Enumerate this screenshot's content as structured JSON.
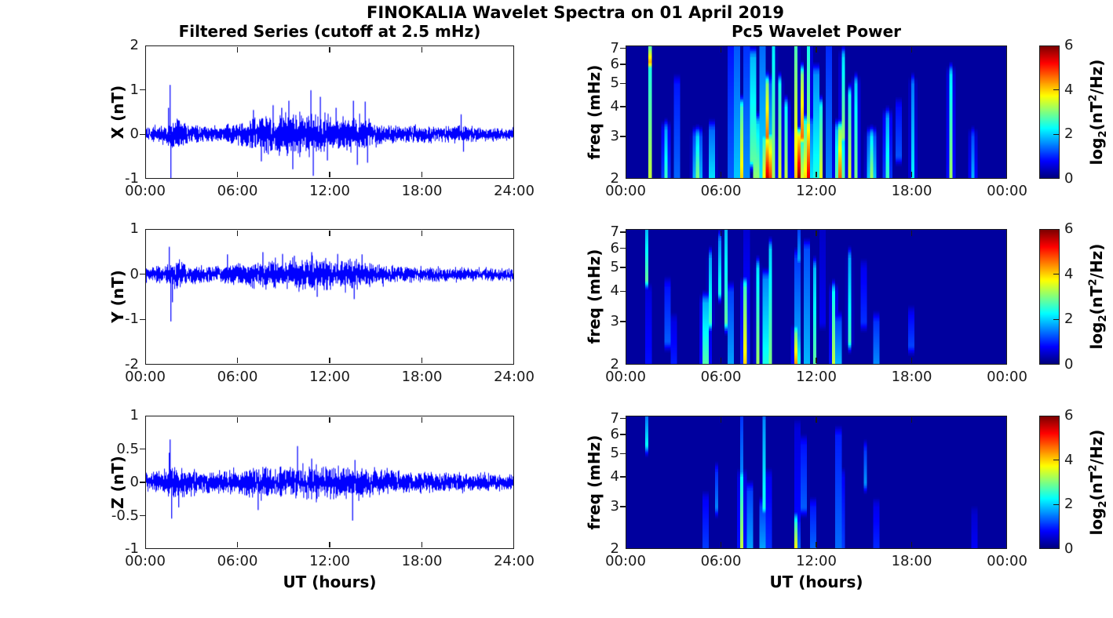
{
  "figure": {
    "title": "FINOKALIA Wavelet Spectra on 01 April 2019",
    "left_title": "Filtered Series (cutoff at 2.5 mHz)",
    "right_title": "Pc5 Wavelet Power",
    "xlabel": "UT (hours)",
    "axis_color": "#1a1a1a",
    "background": "#ffffff",
    "line_color": "#0000ff",
    "heatmap_background": "#00009e",
    "colorbar_label": {
      "pre": "log",
      "sub": "2",
      "mid": "(nT",
      "sup": "2",
      "post": "/Hz)"
    }
  },
  "chart_data": [
    {
      "id": "ts-x",
      "type": "line",
      "component": "X",
      "ylabel": "X (nT)",
      "line_color": "#0000ff",
      "xlim_hours": [
        0,
        24
      ],
      "ylim": [
        -1,
        2
      ],
      "yticks": [
        -1,
        0,
        1,
        2
      ],
      "yticklabels": [
        "-1",
        "0",
        "1",
        "2"
      ],
      "xticks": [
        0,
        6,
        12,
        18,
        24
      ],
      "xticklabels": [
        "00:00",
        "06:00",
        "12:00",
        "18:00",
        "24:00"
      ],
      "noise_envelope_hourly_nT": [
        0.1,
        0.14,
        0.22,
        0.13,
        0.12,
        0.13,
        0.16,
        0.26,
        0.3,
        0.32,
        0.3,
        0.32,
        0.27,
        0.26,
        0.26,
        0.17,
        0.14,
        0.13,
        0.12,
        0.11,
        0.13,
        0.12,
        0.1,
        0.09,
        0.09
      ],
      "spikes_t_v": [
        [
          1.45,
          0.6
        ],
        [
          1.55,
          1.12
        ],
        [
          1.6,
          -1.0
        ],
        [
          7.0,
          0.55
        ],
        [
          7.5,
          -0.62
        ],
        [
          8.3,
          0.66
        ],
        [
          8.85,
          0.6
        ],
        [
          9.3,
          0.76
        ],
        [
          9.6,
          -0.8
        ],
        [
          10.75,
          1.0
        ],
        [
          10.9,
          -0.95
        ],
        [
          11.4,
          0.85
        ],
        [
          11.85,
          -0.6
        ],
        [
          12.4,
          0.6
        ],
        [
          13.55,
          0.76
        ],
        [
          13.8,
          -0.7
        ],
        [
          14.3,
          0.74
        ],
        [
          14.45,
          -0.65
        ],
        [
          20.6,
          0.45
        ],
        [
          20.75,
          -0.4
        ]
      ]
    },
    {
      "id": "ts-y",
      "type": "line",
      "component": "Y",
      "ylabel": "Y (nT)",
      "line_color": "#0000ff",
      "xlim_hours": [
        0,
        24
      ],
      "ylim": [
        -2,
        1
      ],
      "yticks": [
        -2,
        -1,
        0,
        1
      ],
      "yticklabels": [
        "-2",
        "-1",
        "0",
        "1"
      ],
      "xticks": [
        0,
        6,
        12,
        18,
        24
      ],
      "xticklabels": [
        "00:00",
        "06:00",
        "12:00",
        "18:00",
        "24:00"
      ],
      "noise_envelope_hourly_nT": [
        0.1,
        0.12,
        0.2,
        0.13,
        0.12,
        0.14,
        0.16,
        0.19,
        0.21,
        0.21,
        0.22,
        0.25,
        0.22,
        0.21,
        0.22,
        0.16,
        0.13,
        0.12,
        0.12,
        0.11,
        0.1,
        0.1,
        0.1,
        0.09,
        0.09
      ],
      "spikes_t_v": [
        [
          1.5,
          0.62
        ],
        [
          1.6,
          -1.05
        ],
        [
          1.7,
          -0.62
        ],
        [
          5.3,
          0.45
        ],
        [
          7.6,
          0.5
        ],
        [
          8.9,
          0.46
        ],
        [
          9.7,
          0.42
        ],
        [
          10.8,
          0.5
        ],
        [
          11.2,
          -0.5
        ],
        [
          12.5,
          0.46
        ],
        [
          13.6,
          -0.55
        ],
        [
          14.1,
          0.45
        ]
      ]
    },
    {
      "id": "ts-z",
      "type": "line",
      "component": "Z",
      "ylabel": "Z (nT)",
      "xlabel": "UT (hours)",
      "line_color": "#0000ff",
      "xlim_hours": [
        0,
        24
      ],
      "ylim": [
        -1,
        1
      ],
      "yticks": [
        -1,
        -0.5,
        0,
        0.5,
        1
      ],
      "yticklabels": [
        "-1",
        "-0.5",
        "0",
        "0.5",
        "1"
      ],
      "xticks": [
        0,
        6,
        12,
        18,
        24
      ],
      "xticklabels": [
        "00:00",
        "06:00",
        "12:00",
        "18:00",
        "24:00"
      ],
      "noise_envelope_hourly_nT": [
        0.09,
        0.11,
        0.16,
        0.12,
        0.1,
        0.11,
        0.13,
        0.15,
        0.16,
        0.15,
        0.16,
        0.18,
        0.16,
        0.15,
        0.16,
        0.13,
        0.12,
        0.11,
        0.1,
        0.1,
        0.1,
        0.09,
        0.09,
        0.08,
        0.08
      ],
      "spikes_t_v": [
        [
          1.5,
          0.45
        ],
        [
          1.55,
          0.65
        ],
        [
          1.65,
          -0.55
        ],
        [
          2.1,
          -0.38
        ],
        [
          7.3,
          -0.42
        ],
        [
          9.9,
          0.55
        ],
        [
          10.8,
          0.36
        ],
        [
          13.5,
          -0.58
        ],
        [
          13.65,
          0.34
        ]
      ]
    },
    {
      "id": "sp-x",
      "type": "heatmap",
      "component": "X",
      "ylabel": "freq (mHz)",
      "yscale": "log",
      "xlim_hours": [
        0,
        24
      ],
      "flim_mHz": [
        2,
        7.2
      ],
      "yticks": [
        2,
        3,
        4,
        5,
        6,
        7
      ],
      "yticklabels": [
        "2",
        "3",
        "4",
        "5",
        "6",
        "7"
      ],
      "xticks": [
        0,
        6,
        12,
        18,
        24
      ],
      "xticklabels": [
        "00:00",
        "06:00",
        "12:00",
        "18:00",
        "00:00"
      ],
      "colormap": "jet",
      "clim": [
        0,
        6
      ],
      "colorbar_ticks": [
        0,
        2,
        4,
        6
      ],
      "events_t_w_f1_f2_power": [
        [
          1.5,
          0.06,
          2,
          7.2,
          3.4
        ],
        [
          1.5,
          0.08,
          6.2,
          7.2,
          4.2
        ],
        [
          2.5,
          0.15,
          2,
          3.2,
          2.6
        ],
        [
          3.2,
          0.1,
          2,
          5,
          2.2
        ],
        [
          4.5,
          0.2,
          2,
          3,
          3.0
        ],
        [
          5.4,
          0.15,
          2,
          3.2,
          2.6
        ],
        [
          6.6,
          0.07,
          2,
          7.2,
          3.6
        ],
        [
          7.0,
          0.08,
          2,
          7.2,
          4.2
        ],
        [
          7.3,
          0.1,
          2,
          4,
          4.0
        ],
        [
          7.6,
          0.07,
          2,
          7.2,
          4.4
        ],
        [
          8.0,
          0.1,
          2.4,
          6.5,
          4.6
        ],
        [
          8.2,
          0.12,
          2,
          3.4,
          4.4
        ],
        [
          8.6,
          0.08,
          2,
          7.2,
          4.6
        ],
        [
          8.95,
          0.28,
          2,
          2.9,
          5.7
        ],
        [
          8.9,
          0.15,
          3,
          5,
          4.6
        ],
        [
          9.35,
          0.07,
          2,
          7.2,
          4.2
        ],
        [
          9.7,
          0.1,
          2,
          5,
          3.6
        ],
        [
          10.1,
          0.12,
          2,
          4,
          3.4
        ],
        [
          10.75,
          0.07,
          2,
          7.2,
          5.3
        ],
        [
          10.9,
          0.2,
          2,
          3,
          5.9
        ],
        [
          11.1,
          0.1,
          3,
          5.5,
          4.6
        ],
        [
          11.45,
          0.18,
          2,
          3.4,
          5.6
        ],
        [
          11.55,
          0.08,
          2,
          7.2,
          4.4
        ],
        [
          12.0,
          0.1,
          2,
          5.5,
          4.0
        ],
        [
          12.3,
          0.08,
          2,
          4,
          3.6
        ],
        [
          12.8,
          0.07,
          2,
          7.2,
          4.2
        ],
        [
          13.5,
          0.2,
          2,
          3.2,
          4.7
        ],
        [
          13.65,
          0.08,
          3,
          6.5,
          3.8
        ],
        [
          14.1,
          0.1,
          2,
          4.5,
          3.6
        ],
        [
          14.5,
          0.12,
          2,
          5,
          3.0
        ],
        [
          15.5,
          0.2,
          2,
          3,
          3.2
        ],
        [
          16.5,
          0.15,
          2,
          3.6,
          2.6
        ],
        [
          17.2,
          0.1,
          2.5,
          4,
          2.0
        ],
        [
          18.1,
          0.12,
          2,
          5,
          2.2
        ],
        [
          20.5,
          0.12,
          2,
          5.5,
          3.2
        ],
        [
          21.9,
          0.15,
          2,
          3,
          1.8
        ]
      ]
    },
    {
      "id": "sp-y",
      "type": "heatmap",
      "component": "Y",
      "ylabel": "freq (mHz)",
      "yscale": "log",
      "xlim_hours": [
        0,
        24
      ],
      "flim_mHz": [
        2,
        7.2
      ],
      "yticks": [
        2,
        3,
        4,
        5,
        6,
        7
      ],
      "yticklabels": [
        "2",
        "3",
        "4",
        "5",
        "6",
        "7"
      ],
      "xticks": [
        0,
        6,
        12,
        18,
        24
      ],
      "xticklabels": [
        "00:00",
        "06:00",
        "12:00",
        "18:00",
        "00:00"
      ],
      "colormap": "jet",
      "clim": [
        0,
        6
      ],
      "colorbar_ticks": [
        0,
        2,
        4,
        6
      ],
      "events_t_w_f1_f2_power": [
        [
          1.3,
          0.06,
          4.5,
          7.2,
          2.8
        ],
        [
          1.4,
          0.08,
          2,
          4,
          1.8
        ],
        [
          2.6,
          0.12,
          2.5,
          4.2,
          1.8
        ],
        [
          3.0,
          0.1,
          2,
          3,
          1.5
        ],
        [
          5.0,
          0.18,
          2,
          3.6,
          3.2
        ],
        [
          5.3,
          0.1,
          3,
          5.5,
          2.6
        ],
        [
          5.9,
          0.1,
          4,
          6.5,
          2.4
        ],
        [
          6.3,
          0.08,
          3,
          7.2,
          2.8
        ],
        [
          6.6,
          0.12,
          2,
          4,
          2.4
        ],
        [
          7.5,
          0.12,
          2,
          4.2,
          4.0
        ],
        [
          7.6,
          0.06,
          4,
          7.2,
          3.0
        ],
        [
          8.3,
          0.1,
          2,
          5,
          3.2
        ],
        [
          8.8,
          0.12,
          2,
          4.5,
          3.4
        ],
        [
          9.1,
          0.08,
          2,
          6,
          3.0
        ],
        [
          10.75,
          0.13,
          2,
          2.7,
          4.7
        ],
        [
          10.8,
          0.08,
          2.7,
          5.5,
          3.6
        ],
        [
          10.85,
          0.05,
          5.5,
          7.2,
          2.8
        ],
        [
          11.4,
          0.1,
          2,
          6,
          3.0
        ],
        [
          11.9,
          0.08,
          2,
          5,
          2.8
        ],
        [
          12.4,
          0.06,
          3,
          7.2,
          2.6
        ],
        [
          13.1,
          0.12,
          2,
          4,
          3.4
        ],
        [
          13.4,
          0.1,
          2,
          3,
          3.0
        ],
        [
          14.1,
          0.1,
          2.5,
          5.5,
          2.6
        ],
        [
          15.0,
          0.08,
          3,
          5,
          2.2
        ],
        [
          15.8,
          0.12,
          2,
          3,
          2.2
        ],
        [
          18.0,
          0.15,
          2.4,
          3.2,
          1.4
        ]
      ]
    },
    {
      "id": "sp-z",
      "type": "heatmap",
      "component": "Z",
      "ylabel": "freq (mHz)",
      "xlabel": "UT (hours)",
      "yscale": "log",
      "xlim_hours": [
        0,
        24
      ],
      "flim_mHz": [
        2,
        7.2
      ],
      "yticks": [
        2,
        3,
        4,
        5,
        6,
        7
      ],
      "yticklabels": [
        "2",
        "3",
        "4",
        "5",
        "6",
        "7"
      ],
      "xticks": [
        0,
        6,
        12,
        18,
        24
      ],
      "xticklabels": [
        "00:00",
        "06:00",
        "12:00",
        "18:00",
        "00:00"
      ],
      "colormap": "jet",
      "clim": [
        0,
        6
      ],
      "colorbar_ticks": [
        0,
        2,
        4,
        6
      ],
      "events_t_w_f1_f2_power": [
        [
          1.3,
          0.05,
          5.5,
          7.2,
          2.2
        ],
        [
          5.0,
          0.1,
          2,
          3.2,
          1.8
        ],
        [
          5.7,
          0.08,
          3,
          4.2,
          1.5
        ],
        [
          7.3,
          0.12,
          2,
          4,
          3.4
        ],
        [
          7.35,
          0.05,
          4,
          7.2,
          2.6
        ],
        [
          7.8,
          0.1,
          2,
          3.5,
          2.8
        ],
        [
          8.6,
          0.1,
          2,
          3,
          2.8
        ],
        [
          8.7,
          0.05,
          3,
          7,
          2.4
        ],
        [
          9.0,
          0.08,
          2,
          4,
          2.2
        ],
        [
          10.75,
          0.1,
          2,
          2.6,
          4.2
        ],
        [
          10.8,
          0.06,
          2.6,
          6.5,
          3.2
        ],
        [
          11.2,
          0.08,
          3,
          5.5,
          2.8
        ],
        [
          11.8,
          0.1,
          2,
          3,
          2.2
        ],
        [
          13.4,
          0.08,
          2,
          6,
          3.0
        ],
        [
          13.6,
          0.08,
          2,
          4,
          2.4
        ],
        [
          15.1,
          0.08,
          3.8,
          5.2,
          1.6
        ],
        [
          15.8,
          0.1,
          2,
          3,
          1.6
        ],
        [
          22.0,
          0.12,
          2,
          2.8,
          1.0
        ]
      ]
    }
  ]
}
